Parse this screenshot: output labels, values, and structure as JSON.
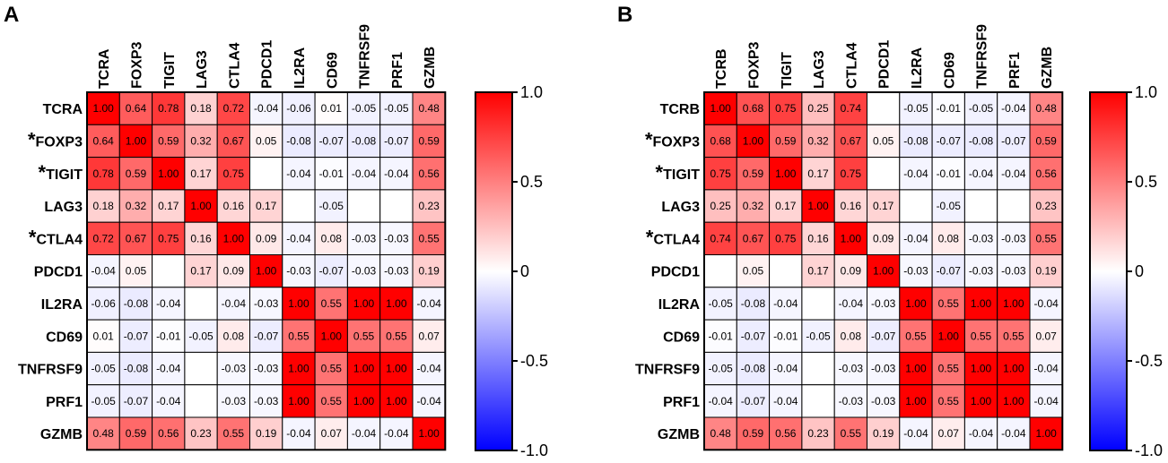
{
  "chart_data": [
    {
      "type": "heatmap",
      "panel": "A",
      "columns": [
        "TCRA",
        "FOXP3",
        "TIGIT",
        "LAG3",
        "CTLA4",
        "PDCD1",
        "IL2RA",
        "CD69",
        "TNFRSF9",
        "PRF1",
        "GZMB"
      ],
      "rows": [
        "TCRA",
        "FOXP3",
        "TIGIT",
        "LAG3",
        "CTLA4",
        "PDCD1",
        "IL2RA",
        "CD69",
        "TNFRSF9",
        "PRF1",
        "GZMB"
      ],
      "starred_rows": [
        false,
        true,
        true,
        false,
        true,
        false,
        false,
        false,
        false,
        false,
        false
      ],
      "star_symbol": "*",
      "values": [
        [
          1.0,
          0.64,
          0.78,
          0.18,
          0.72,
          -0.04,
          -0.06,
          0.01,
          -0.05,
          -0.05,
          0.48
        ],
        [
          0.64,
          1.0,
          0.59,
          0.32,
          0.67,
          0.05,
          -0.08,
          -0.07,
          -0.08,
          -0.07,
          0.59
        ],
        [
          0.78,
          0.59,
          1.0,
          0.17,
          0.75,
          null,
          -0.04,
          -0.01,
          -0.04,
          -0.04,
          0.56
        ],
        [
          0.18,
          0.32,
          0.17,
          1.0,
          0.16,
          0.17,
          null,
          -0.05,
          null,
          null,
          0.23
        ],
        [
          0.72,
          0.67,
          0.75,
          0.16,
          1.0,
          0.09,
          -0.04,
          0.08,
          -0.03,
          -0.03,
          0.55
        ],
        [
          -0.04,
          0.05,
          null,
          0.17,
          0.09,
          1.0,
          -0.03,
          -0.07,
          -0.03,
          -0.03,
          0.19
        ],
        [
          -0.06,
          -0.08,
          -0.04,
          null,
          -0.04,
          -0.03,
          1.0,
          0.55,
          1.0,
          1.0,
          -0.04
        ],
        [
          0.01,
          -0.07,
          -0.01,
          -0.05,
          0.08,
          -0.07,
          0.55,
          1.0,
          0.55,
          0.55,
          0.07
        ],
        [
          -0.05,
          -0.08,
          -0.04,
          null,
          -0.03,
          -0.03,
          1.0,
          0.55,
          1.0,
          1.0,
          -0.04
        ],
        [
          -0.05,
          -0.07,
          -0.04,
          null,
          -0.03,
          -0.03,
          1.0,
          0.55,
          1.0,
          1.0,
          -0.04
        ],
        [
          0.48,
          0.59,
          0.56,
          0.23,
          0.55,
          0.19,
          -0.04,
          0.07,
          -0.04,
          -0.04,
          1.0
        ]
      ],
      "colorbar": {
        "range": [
          -1.0,
          1.0
        ],
        "ticks": [
          "1.0",
          "0.5",
          "0",
          "-0.5",
          "-1.0"
        ],
        "tick_values": [
          1.0,
          0.5,
          0,
          -0.5,
          -1.0
        ],
        "low_color": "#0000ff",
        "mid_color": "#ffffff",
        "high_color": "#ff0000"
      }
    },
    {
      "type": "heatmap",
      "panel": "B",
      "columns": [
        "TCRB",
        "FOXP3",
        "TIGIT",
        "LAG3",
        "CTLA4",
        "PDCD1",
        "IL2RA",
        "CD69",
        "TNFRSF9",
        "PRF1",
        "GZMB"
      ],
      "rows": [
        "TCRB",
        "FOXP3",
        "TIGIT",
        "LAG3",
        "CTLA4",
        "PDCD1",
        "IL2RA",
        "CD69",
        "TNFRSF9",
        "PRF1",
        "GZMB"
      ],
      "starred_rows": [
        false,
        true,
        true,
        false,
        true,
        false,
        false,
        false,
        false,
        false,
        false
      ],
      "star_symbol": "*",
      "values": [
        [
          1.0,
          0.68,
          0.75,
          0.25,
          0.74,
          null,
          -0.05,
          -0.01,
          -0.05,
          -0.04,
          0.48
        ],
        [
          0.68,
          1.0,
          0.59,
          0.32,
          0.67,
          0.05,
          -0.08,
          -0.07,
          -0.08,
          -0.07,
          0.59
        ],
        [
          0.75,
          0.59,
          1.0,
          0.17,
          0.75,
          null,
          -0.04,
          -0.01,
          -0.04,
          -0.04,
          0.56
        ],
        [
          0.25,
          0.32,
          0.17,
          1.0,
          0.16,
          0.17,
          null,
          -0.05,
          null,
          null,
          0.23
        ],
        [
          0.74,
          0.67,
          0.75,
          0.16,
          1.0,
          0.09,
          -0.04,
          0.08,
          -0.03,
          -0.03,
          0.55
        ],
        [
          null,
          0.05,
          null,
          0.17,
          0.09,
          1.0,
          -0.03,
          -0.07,
          -0.03,
          -0.03,
          0.19
        ],
        [
          -0.05,
          -0.08,
          -0.04,
          null,
          -0.04,
          -0.03,
          1.0,
          0.55,
          1.0,
          1.0,
          -0.04
        ],
        [
          -0.01,
          -0.07,
          -0.01,
          -0.05,
          0.08,
          -0.07,
          0.55,
          1.0,
          0.55,
          0.55,
          0.07
        ],
        [
          -0.05,
          -0.08,
          -0.04,
          null,
          -0.03,
          -0.03,
          1.0,
          0.55,
          1.0,
          1.0,
          -0.04
        ],
        [
          -0.04,
          -0.07,
          -0.04,
          null,
          -0.03,
          -0.03,
          1.0,
          0.55,
          1.0,
          1.0,
          -0.04
        ],
        [
          0.48,
          0.59,
          0.56,
          0.23,
          0.55,
          0.19,
          -0.04,
          0.07,
          -0.04,
          -0.04,
          1.0
        ]
      ],
      "colorbar": {
        "range": [
          -1.0,
          1.0
        ],
        "ticks": [
          "1.0",
          "0.5",
          "0",
          "-0.5",
          "-1.0"
        ],
        "tick_values": [
          1.0,
          0.5,
          0,
          -0.5,
          -1.0
        ],
        "low_color": "#0000ff",
        "mid_color": "#ffffff",
        "high_color": "#ff0000"
      }
    }
  ]
}
